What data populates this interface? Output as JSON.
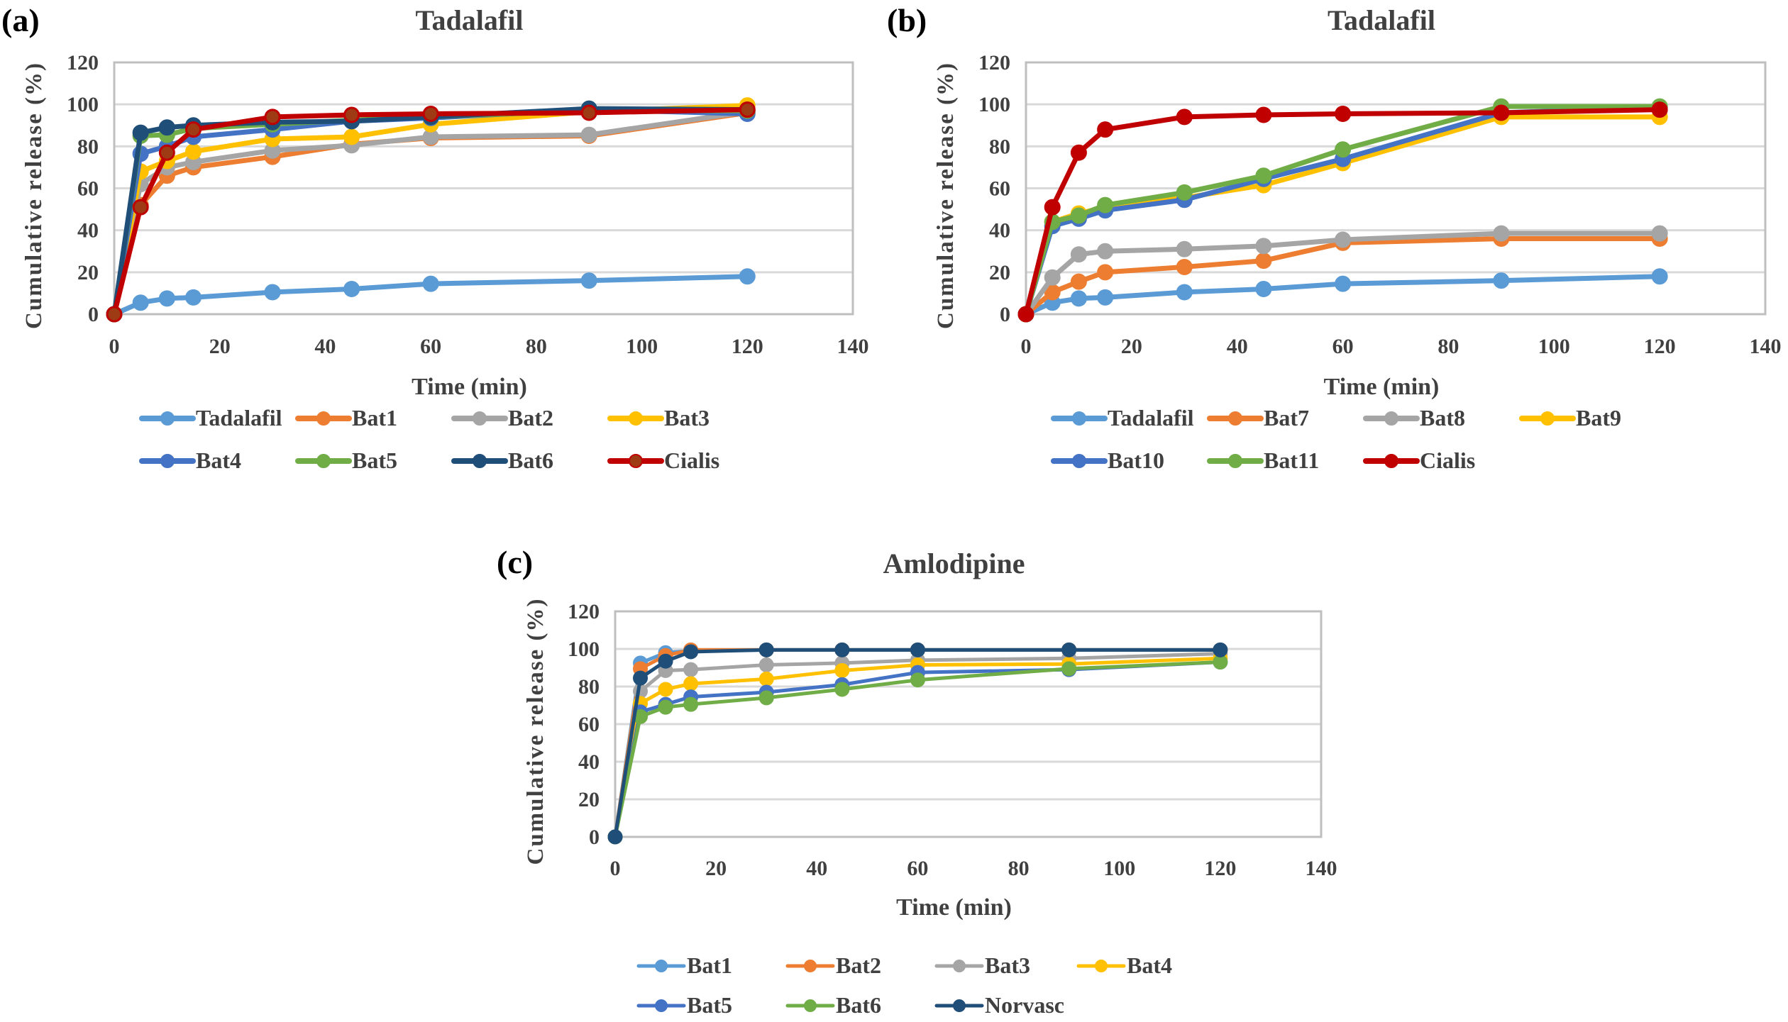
{
  "chart_data": [
    {
      "id": "a",
      "panel_label": "(a)",
      "type": "line",
      "title": "Tadalafil",
      "xlabel": "Time (min)",
      "ylabel": "Cumulative release (%)",
      "xlim": [
        0,
        140
      ],
      "ylim": [
        0,
        120
      ],
      "xticks": [
        0,
        20,
        40,
        60,
        80,
        100,
        120,
        140
      ],
      "yticks": [
        0,
        20,
        40,
        60,
        80,
        100,
        120
      ],
      "grid": "horizontal",
      "legend_position": "bottom",
      "x": [
        0,
        5,
        10,
        15,
        30,
        45,
        60,
        90,
        120
      ],
      "series": [
        {
          "name": "Tadalafil",
          "color": "#5b9bd5",
          "values": [
            0,
            5.5,
            7.5,
            8,
            10.5,
            12,
            14.5,
            16,
            18
          ]
        },
        {
          "name": "Bat1",
          "color": "#ed7d31",
          "values": [
            0,
            52,
            66,
            70,
            75,
            81,
            84,
            85,
            96
          ]
        },
        {
          "name": "Bat2",
          "color": "#a5a5a5",
          "values": [
            0,
            62,
            70,
            72.5,
            78,
            80.5,
            84.5,
            85.5,
            96.5
          ]
        },
        {
          "name": "Bat3",
          "color": "#ffc000",
          "values": [
            0,
            68,
            73,
            77.5,
            83.5,
            84.5,
            90.5,
            96.5,
            99.5
          ]
        },
        {
          "name": "Bat4",
          "color": "#4472c4",
          "values": [
            0,
            76.5,
            80,
            84.5,
            88,
            92,
            93.5,
            97.5,
            95.5
          ]
        },
        {
          "name": "Bat5",
          "color": "#70ad47",
          "values": [
            0,
            85,
            85.5,
            88.5,
            90.5,
            92.5,
            94,
            97,
            97
          ]
        },
        {
          "name": "Bat6",
          "color": "#1f4e79",
          "values": [
            0,
            86.5,
            89,
            90,
            91.5,
            92,
            94,
            98,
            97.5
          ]
        },
        {
          "name": "Cialis",
          "color": "#c00000",
          "values": [
            0,
            51,
            77,
            88,
            94,
            95,
            95.5,
            96,
            97.5
          ]
        }
      ]
    },
    {
      "id": "b",
      "panel_label": "(b)",
      "type": "line",
      "title": "Tadalafil",
      "xlabel": "Time (min)",
      "ylabel": "Cumulative release (%)",
      "xlim": [
        0,
        140
      ],
      "ylim": [
        0,
        120
      ],
      "xticks": [
        0,
        20,
        40,
        60,
        80,
        100,
        120,
        140
      ],
      "yticks": [
        0,
        20,
        40,
        60,
        80,
        100,
        120
      ],
      "grid": "horizontal",
      "legend_position": "bottom",
      "x": [
        0,
        5,
        10,
        15,
        30,
        45,
        60,
        90,
        120
      ],
      "series": [
        {
          "name": "Tadalafil",
          "color": "#5b9bd5",
          "values": [
            0,
            5.5,
            7.5,
            8,
            10.5,
            12,
            14.5,
            16,
            18
          ]
        },
        {
          "name": "Bat7",
          "color": "#ed7d31",
          "values": [
            0,
            10.5,
            15.5,
            20,
            22.5,
            25.5,
            34,
            36,
            36
          ]
        },
        {
          "name": "Bat8",
          "color": "#a5a5a5",
          "values": [
            0,
            17.5,
            28.5,
            30,
            31,
            32.5,
            35.5,
            38.5,
            38.5
          ]
        },
        {
          "name": "Bat9",
          "color": "#ffc000",
          "values": [
            0,
            44,
            48,
            51,
            55.5,
            61.5,
            72,
            94,
            94
          ]
        },
        {
          "name": "Bat10",
          "color": "#4472c4",
          "values": [
            0,
            42,
            45.5,
            49.5,
            54.5,
            64.5,
            74,
            96,
            98.5
          ]
        },
        {
          "name": "Bat11",
          "color": "#70ad47",
          "values": [
            0,
            44,
            47,
            52,
            58,
            66,
            78.5,
            99,
            99
          ]
        },
        {
          "name": "Cialis",
          "color": "#c00000",
          "values": [
            0,
            51,
            77,
            88,
            94,
            95,
            95.5,
            96,
            97.5
          ]
        }
      ]
    },
    {
      "id": "c",
      "panel_label": "(c)",
      "type": "line",
      "title": "Amlodipine",
      "xlabel": "Time (min)",
      "ylabel": "Cumulative release (%)",
      "xlim": [
        0,
        140
      ],
      "ylim": [
        0,
        120
      ],
      "xticks": [
        0,
        20,
        40,
        60,
        80,
        100,
        120,
        140
      ],
      "yticks": [
        0,
        20,
        40,
        60,
        80,
        100,
        120
      ],
      "grid": "horizontal",
      "legend_position": "bottom",
      "x": [
        0,
        5,
        10,
        15,
        30,
        45,
        60,
        90,
        120
      ],
      "series": [
        {
          "name": "Bat1",
          "color": "#5b9bd5",
          "values": [
            0,
            92.5,
            98,
            99,
            99.5,
            99.5,
            99.5,
            99.5,
            99.5
          ]
        },
        {
          "name": "Bat2",
          "color": "#ed7d31",
          "values": [
            0,
            89.5,
            96.5,
            99.5,
            99.5,
            99.5,
            99.5,
            99.5,
            99.5
          ]
        },
        {
          "name": "Bat3",
          "color": "#a5a5a5",
          "values": [
            0,
            77.5,
            88.5,
            89,
            91.5,
            92.5,
            94,
            95,
            97.5
          ]
        },
        {
          "name": "Bat4",
          "color": "#ffc000",
          "values": [
            0,
            71,
            78.5,
            81.5,
            84,
            88.5,
            91.5,
            92,
            95
          ]
        },
        {
          "name": "Bat5",
          "color": "#4472c4",
          "values": [
            0,
            66.5,
            70.5,
            74.5,
            77,
            81,
            87.5,
            89,
            93
          ]
        },
        {
          "name": "Bat6",
          "color": "#70ad47",
          "values": [
            0,
            64,
            69,
            70.5,
            74,
            78.5,
            83.5,
            89.5,
            93
          ]
        },
        {
          "name": "Norvasc",
          "color": "#1f4e79",
          "values": [
            0,
            84.5,
            93.5,
            98.5,
            99.5,
            99.5,
            99.5,
            99.5,
            99.5
          ]
        }
      ]
    }
  ]
}
